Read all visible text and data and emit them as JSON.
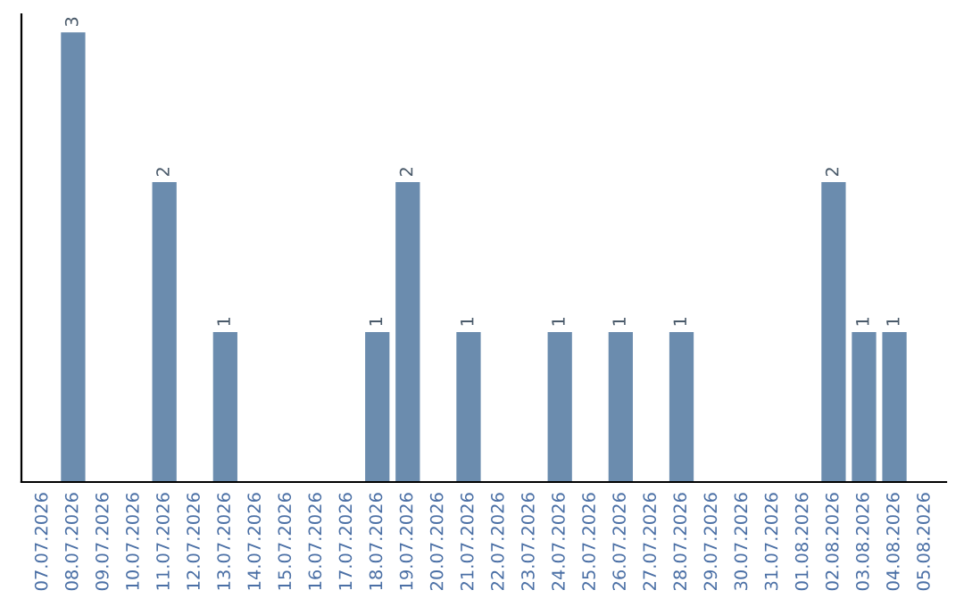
{
  "chart_data": {
    "type": "bar",
    "categories": [
      "07.07.2026",
      "08.07.2026",
      "09.07.2026",
      "10.07.2026",
      "11.07.2026",
      "12.07.2026",
      "13.07.2026",
      "14.07.2026",
      "15.07.2026",
      "16.07.2026",
      "17.07.2026",
      "18.07.2026",
      "19.07.2026",
      "20.07.2026",
      "21.07.2026",
      "22.07.2026",
      "23.07.2026",
      "24.07.2026",
      "25.07.2026",
      "26.07.2026",
      "27.07.2026",
      "28.07.2026",
      "29.07.2026",
      "30.07.2026",
      "31.07.2026",
      "01.08.2026",
      "02.08.2026",
      "03.08.2026",
      "04.08.2026",
      "05.08.2026"
    ],
    "values": [
      0,
      3,
      0,
      0,
      2,
      0,
      1,
      0,
      0,
      0,
      0,
      1,
      2,
      0,
      1,
      0,
      0,
      1,
      0,
      1,
      0,
      1,
      0,
      0,
      0,
      0,
      2,
      1,
      1,
      0
    ],
    "value_labels": [
      null,
      "3",
      null,
      null,
      "2",
      null,
      "1",
      null,
      null,
      null,
      null,
      "1",
      "2",
      null,
      "1",
      null,
      null,
      "1",
      null,
      "1",
      null,
      "1",
      null,
      null,
      null,
      null,
      "2",
      "1",
      "1",
      null
    ],
    "color": "#6b8cae",
    "tick_labels": "x",
    "grid": false,
    "legend": false
  }
}
